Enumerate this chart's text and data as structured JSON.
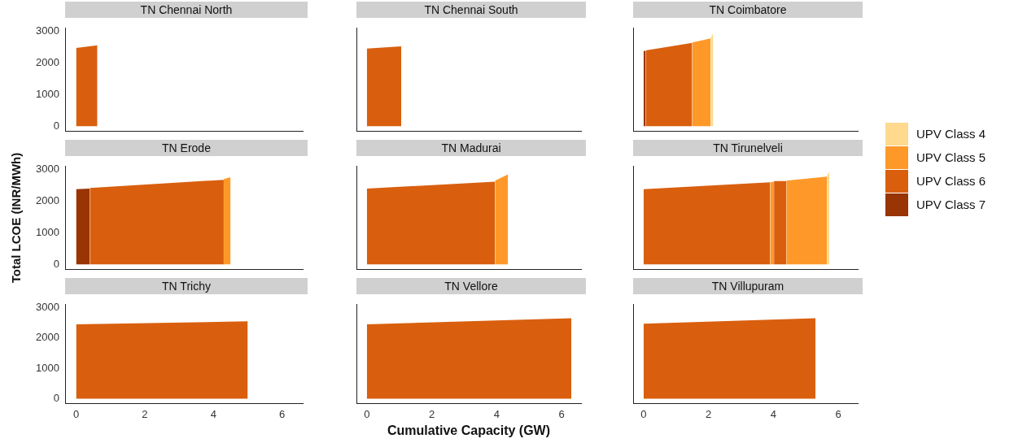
{
  "chart_data": [
    {
      "type": "area",
      "title": "TN  Chennai  North",
      "xlim": [
        -0.32,
        6.6
      ],
      "xticks": [
        0,
        2,
        4,
        6
      ],
      "ylim": [
        -150,
        3100
      ],
      "yticks": [
        0,
        1000,
        2000,
        3000
      ],
      "tick_labels": "y",
      "series": [
        {
          "name": "UPV Class 6",
          "color": "#d95f0e",
          "x": [
            0,
            0.62
          ],
          "values": [
            2480,
            2560
          ]
        }
      ]
    },
    {
      "type": "area",
      "title": "TN  Chennai  South",
      "xlim": [
        -0.32,
        6.6
      ],
      "xticks": [
        0,
        2,
        4,
        6
      ],
      "ylim": [
        -150,
        3100
      ],
      "yticks": [
        0,
        1000,
        2000,
        3000
      ],
      "tick_labels": false,
      "series": [
        {
          "name": "UPV Class 6",
          "color": "#d95f0e",
          "x": [
            0,
            1.06
          ],
          "values": [
            2460,
            2530
          ]
        }
      ]
    },
    {
      "type": "area",
      "title": "TN  Coimbatore",
      "legend": "right",
      "xlim": [
        -0.32,
        6.6
      ],
      "xticks": [
        0,
        2,
        4,
        6
      ],
      "ylim": [
        -150,
        3100
      ],
      "yticks": [
        0,
        1000,
        2000,
        3000
      ],
      "tick_labels": false,
      "series": [
        {
          "name": "UPV Class 4",
          "color": "#fed98e",
          "x": [
            2.07,
            2.15
          ],
          "values": [
            2800,
            2950
          ]
        },
        {
          "name": "UPV Class 5",
          "color": "#fe9929",
          "x": [
            1.5,
            2.07
          ],
          "values": [
            2650,
            2780
          ]
        },
        {
          "name": "UPV Class 6",
          "color": "#d95f0e",
          "x": [
            0.07,
            1.5
          ],
          "values": [
            2400,
            2640
          ]
        },
        {
          "name": "UPV Class 7",
          "color": "#993404",
          "x": [
            0,
            0.07
          ],
          "values": [
            2380,
            2390
          ]
        }
      ]
    },
    {
      "type": "area",
      "title": "TN  Erode",
      "ylabel": "Total LCOE (INR/MWh)",
      "xlim": [
        -0.32,
        6.6
      ],
      "xticks": [
        0,
        2,
        4,
        6
      ],
      "ylim": [
        -150,
        3100
      ],
      "yticks": [
        0,
        1000,
        2000,
        3000
      ],
      "tick_labels": "y",
      "series": [
        {
          "name": "UPV Class 5",
          "color": "#fe9929",
          "x": [
            4.3,
            4.5
          ],
          "values": [
            2700,
            2760
          ]
        },
        {
          "name": "UPV Class 6",
          "color": "#d95f0e",
          "x": [
            0.4,
            4.3
          ],
          "values": [
            2420,
            2680
          ]
        },
        {
          "name": "UPV Class 7",
          "color": "#993404",
          "x": [
            0,
            0.4
          ],
          "values": [
            2380,
            2400
          ]
        }
      ]
    },
    {
      "type": "area",
      "title": "TN  Madurai",
      "xlim": [
        -0.32,
        6.6
      ],
      "xticks": [
        0,
        2,
        4,
        6
      ],
      "ylim": [
        -150,
        3100
      ],
      "yticks": [
        0,
        1000,
        2000,
        3000
      ],
      "tick_labels": false,
      "series": [
        {
          "name": "UPV Class 5",
          "color": "#fe9929",
          "x": [
            3.95,
            4.35
          ],
          "values": [
            2650,
            2850
          ]
        },
        {
          "name": "UPV Class 6",
          "color": "#d95f0e",
          "x": [
            0,
            3.95
          ],
          "values": [
            2400,
            2620
          ]
        }
      ]
    },
    {
      "type": "area",
      "title": "TN  Tirunelveli",
      "xlim": [
        -0.32,
        6.6
      ],
      "xticks": [
        0,
        2,
        4,
        6
      ],
      "ylim": [
        -150,
        3100
      ],
      "yticks": [
        0,
        1000,
        2000,
        3000
      ],
      "tick_labels": false,
      "series": [
        {
          "name": "UPV Class 4",
          "color": "#fed98e",
          "x": [
            5.65,
            5.73
          ],
          "values": [
            2800,
            2950
          ]
        },
        {
          "name": "UPV Class 5",
          "color": "#fe9929",
          "x": [
            3.9,
            4.02,
            4.05,
            4.4,
            5.65
          ],
          "values": [
            2600,
            2620,
            null,
            2650,
            2780
          ]
        },
        {
          "name": "UPV Class 6",
          "color": "#d95f0e",
          "x": [
            0,
            3.9,
            3.95,
            4.02,
            4.4
          ],
          "values": [
            2380,
            2600,
            null,
            2640,
            2640
          ]
        }
      ]
    },
    {
      "type": "area",
      "title": "TN  Trichy",
      "xlim": [
        -0.32,
        6.6
      ],
      "xticks": [
        0,
        2,
        4,
        6
      ],
      "ylim": [
        -150,
        3100
      ],
      "yticks": [
        0,
        1000,
        2000,
        3000
      ],
      "series": [
        {
          "name": "UPV Class 6",
          "color": "#d95f0e",
          "x": [
            0,
            5.0
          ],
          "values": [
            2450,
            2550
          ]
        }
      ]
    },
    {
      "type": "area",
      "title": "TN  Vellore",
      "xlabel": "Cumulative Capacity (GW)",
      "xlim": [
        -0.32,
        6.6
      ],
      "xticks": [
        0,
        2,
        4,
        6
      ],
      "ylim": [
        -150,
        3100
      ],
      "yticks": [
        0,
        1000,
        2000,
        3000
      ],
      "tick_labels": "x",
      "series": [
        {
          "name": "UPV Class 6",
          "color": "#d95f0e",
          "x": [
            0,
            6.3
          ],
          "values": [
            2450,
            2650
          ]
        }
      ]
    },
    {
      "type": "area",
      "title": "TN  Villupuram",
      "xlim": [
        -0.32,
        6.6
      ],
      "xticks": [
        0,
        2,
        4,
        6
      ],
      "ylim": [
        -150,
        3100
      ],
      "yticks": [
        0,
        1000,
        2000,
        3000
      ],
      "tick_labels": "x",
      "series": [
        {
          "name": "UPV Class 6",
          "color": "#d95f0e",
          "x": [
            0,
            5.3
          ],
          "values": [
            2470,
            2650
          ]
        }
      ]
    }
  ]
}
